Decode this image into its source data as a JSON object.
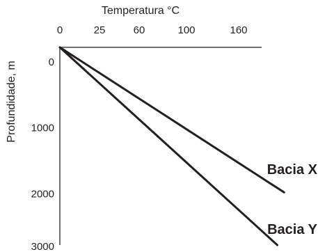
{
  "chart_data": {
    "type": "line",
    "title": "",
    "xlabel": "Temperatura °C",
    "ylabel": "Profundidade, m",
    "x_axis_position": "top",
    "y_axis_inverted": true,
    "x_tick_labels": [
      "0",
      "25",
      "60",
      "100",
      "160"
    ],
    "y_ticks": [
      0,
      1000,
      2000,
      3000
    ],
    "y_tick_labels": [
      "0",
      "1000",
      "2000",
      "3000"
    ],
    "ylim": [
      0,
      3000
    ],
    "grid": false,
    "series": [
      {
        "name": "Bacia X",
        "points": [
          {
            "x_tick": 0,
            "depth": 0
          },
          {
            "x_tick": 4.87,
            "depth": 2200
          }
        ]
      },
      {
        "name": "Bacia Y",
        "points": [
          {
            "x_tick": 0,
            "depth": 0
          },
          {
            "x_tick": 4.74,
            "depth": 3000
          }
        ]
      }
    ],
    "line_color": "#231f20"
  }
}
